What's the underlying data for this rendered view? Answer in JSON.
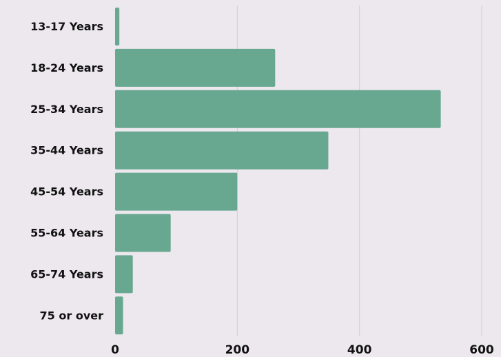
{
  "chart_data": {
    "type": "bar",
    "orientation": "horizontal",
    "categories": [
      "13-17 Years",
      "18-24 Years",
      "25-34 Years",
      "35-44 Years",
      "45-54 Years",
      "55-64 Years",
      "65-74 Years",
      "75 or over"
    ],
    "values": [
      7,
      262,
      533,
      349,
      200,
      91,
      29,
      13
    ],
    "title": "",
    "xlabel": "",
    "ylabel": "",
    "xlim": [
      0,
      600
    ],
    "xticks": [
      0,
      200,
      400,
      600
    ],
    "xtick_labels": [
      "0",
      "200",
      "400",
      "600"
    ],
    "grid": "vertical",
    "legend": "none",
    "colors": {
      "bar": "#68a891",
      "grid": "#d2ced3",
      "background": "#ede8ee",
      "text": "#111111"
    }
  }
}
